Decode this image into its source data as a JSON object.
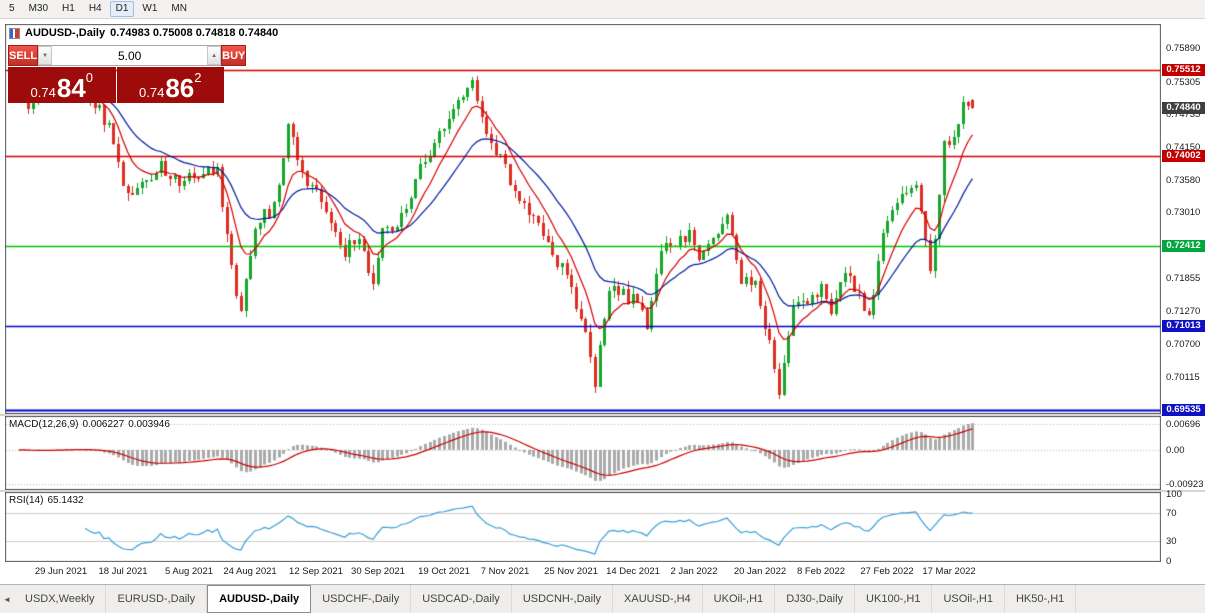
{
  "toolbar": {
    "timeframes": [
      "5",
      "M30",
      "H1",
      "H4",
      "D1",
      "W1",
      "MN"
    ],
    "active": "D1"
  },
  "icons": {
    "volume_down": "▼",
    "volume_up": "▲",
    "tab_scroll_left": "◄"
  },
  "chart": {
    "symbol_label": "AUDUSD-,Daily",
    "ohlc_label": "0.74983 0.75008 0.74818 0.74840",
    "trade_panel": {
      "sell_label": "SELL",
      "buy_label": "BUY",
      "volume": "5.00",
      "sell_price": {
        "prefix": "0.74",
        "main": "84",
        "sup": "0"
      },
      "buy_price": {
        "prefix": "0.74",
        "main": "86",
        "sup": "2"
      }
    },
    "price_scale_labels": [
      "0.75890",
      "0.75305",
      "0.74735",
      "0.74150",
      "0.73580",
      "0.73010",
      "0.72425",
      "0.71855",
      "0.71270",
      "0.70700",
      "0.70115"
    ],
    "price_tags": [
      {
        "text": "0.75512",
        "color": "#c20000"
      },
      {
        "text": "0.74840",
        "color": "#3f3f3f"
      },
      {
        "text": "0.74002",
        "color": "#c20000"
      },
      {
        "text": "0.72412",
        "color": "#00a73c"
      },
      {
        "text": "0.71013",
        "color": "#1111c4"
      },
      {
        "text": "0.69535",
        "color": "#1111c4"
      }
    ]
  },
  "macd_panel": {
    "label": "MACD(12,26,9)",
    "value1": "0.006227",
    "value2": "0.003946",
    "scale": [
      "0.00696",
      "0.00",
      "-0.00923"
    ]
  },
  "rsi_panel": {
    "label": "RSI(14)",
    "value": "65.1432",
    "scale": [
      "100",
      "70",
      "30",
      "0"
    ]
  },
  "bottom_tabs": {
    "active_index": 2,
    "tabs": [
      "USDX,Weekly",
      "EURUSD-,Daily",
      "AUDUSD-,Daily",
      "USDCHF-,Daily",
      "USDCAD-,Daily",
      "USDCNH-,Daily",
      "XAUUSD-,H4",
      "UKOil-,H1",
      "DJ30-,Daily",
      "UK100-,H1",
      "USOil-,H1",
      "HK50-,H1"
    ]
  },
  "chart_data": {
    "type": "candlestick",
    "symbol": "AUDUSD",
    "timeframe": "Daily",
    "current_ohlc": {
      "open": 0.74983,
      "high": 0.75008,
      "low": 0.74818,
      "close": 0.7484
    },
    "bid": 0.7484,
    "ask": 0.74862,
    "bars": 203,
    "y_range": [
      0.6948,
      0.763
    ],
    "price_path_anchors": [
      [
        0,
        0.752
      ],
      [
        2,
        0.7495
      ],
      [
        5,
        0.751
      ],
      [
        9,
        0.7512
      ],
      [
        12,
        0.7527
      ],
      [
        14,
        0.7494
      ],
      [
        17,
        0.7478
      ],
      [
        19,
        0.7445
      ],
      [
        23,
        0.733
      ],
      [
        27,
        0.7365
      ],
      [
        30,
        0.7378
      ],
      [
        33,
        0.7361
      ],
      [
        37,
        0.7355
      ],
      [
        40,
        0.7378
      ],
      [
        42,
        0.737
      ],
      [
        46,
        0.7146
      ],
      [
        47,
        0.7135
      ],
      [
        50,
        0.7271
      ],
      [
        54,
        0.7315
      ],
      [
        57,
        0.7453
      ],
      [
        60,
        0.7369
      ],
      [
        64,
        0.7323
      ],
      [
        69,
        0.7234
      ],
      [
        72,
        0.7259
      ],
      [
        75,
        0.7181
      ],
      [
        77,
        0.726
      ],
      [
        80,
        0.7274
      ],
      [
        85,
        0.738
      ],
      [
        91,
        0.7465
      ],
      [
        96,
        0.754
      ],
      [
        99,
        0.743
      ],
      [
        102,
        0.74
      ],
      [
        105,
        0.7327
      ],
      [
        109,
        0.73
      ],
      [
        112,
        0.725
      ],
      [
        115,
        0.7198
      ],
      [
        119,
        0.7125
      ],
      [
        122,
        0.7
      ],
      [
        125,
        0.717
      ],
      [
        130,
        0.7145
      ],
      [
        133,
        0.7105
      ],
      [
        136,
        0.724
      ],
      [
        142,
        0.7265
      ],
      [
        144,
        0.722
      ],
      [
        150,
        0.7285
      ],
      [
        153,
        0.7185
      ],
      [
        156,
        0.718
      ],
      [
        160,
        0.7035
      ],
      [
        161,
        0.699
      ],
      [
        164,
        0.713
      ],
      [
        170,
        0.717
      ],
      [
        172,
        0.713
      ],
      [
        175,
        0.719
      ],
      [
        180,
        0.7125
      ],
      [
        184,
        0.7295
      ],
      [
        187,
        0.7325
      ],
      [
        190,
        0.7357
      ],
      [
        193,
        0.7194
      ],
      [
        196,
        0.7414
      ],
      [
        198,
        0.7428
      ],
      [
        200,
        0.75
      ],
      [
        202,
        0.7484
      ]
    ],
    "horizontal_lines": [
      {
        "price": 0.75512,
        "color": "#cc0000",
        "width": 1.5
      },
      {
        "price": 0.74002,
        "color": "#cc0000",
        "width": 1.5
      },
      {
        "price": 0.72412,
        "color": "#00c400",
        "width": 1.6
      },
      {
        "price": 0.71013,
        "color": "#0000c8",
        "width": 1.5
      },
      {
        "price": 0.69535,
        "color": "#0000c8",
        "width": 2
      }
    ],
    "moving_averages": [
      {
        "period": 8,
        "color": "#d40000"
      },
      {
        "period": 20,
        "color": "#001a9e"
      }
    ],
    "x_labels": [
      "29 Jun 2021",
      "18 Jul 2021",
      "5 Aug 2021",
      "24 Aug 2021",
      "12 Sep 2021",
      "30 Sep 2021",
      "19 Oct 2021",
      "7 Nov 2021",
      "25 Nov 2021",
      "14 Dec 2021",
      "2 Jan 2022",
      "20 Jan 2022",
      "8 Feb 2022",
      "27 Feb 2022",
      "17 Mar 2022"
    ],
    "x_label_bars": [
      9,
      22,
      36,
      49,
      63,
      76,
      90,
      103,
      117,
      130,
      143,
      157,
      170,
      184,
      197
    ],
    "indicators": [
      {
        "name": "MACD",
        "params": [
          12,
          26,
          9
        ],
        "current_values": [
          0.006227,
          0.003946
        ],
        "scale_range": [
          -0.0106,
          0.0089
        ],
        "scale_labels": [
          0.00696,
          0.0,
          -0.00923
        ]
      },
      {
        "name": "RSI",
        "params": [
          14
        ],
        "current_value": 65.1432,
        "scale_range": [
          0,
          100
        ],
        "levels": [
          70,
          30
        ]
      }
    ],
    "style": {
      "up_color": "#18a52c",
      "down_color": "#dc2f23",
      "hist_color": "#aaaaaa",
      "signal_color": "#cc0000",
      "rsi_color": "#3a9fd8"
    }
  }
}
